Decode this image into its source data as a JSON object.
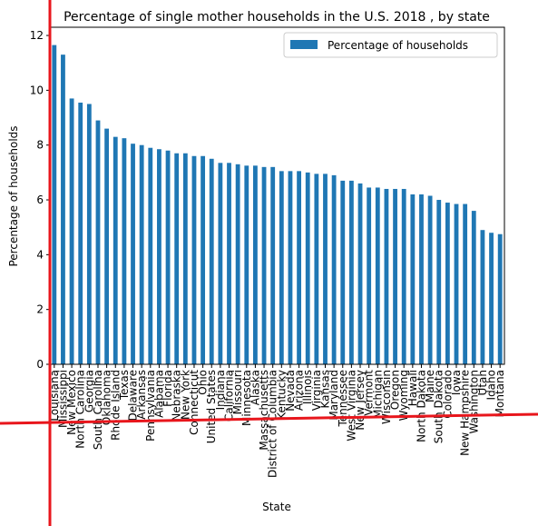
{
  "chart_data": {
    "type": "bar",
    "title": "Percentage of single mother households in the U.S. 2018 , by state",
    "x_label": "State",
    "y_label": "Percentage of households",
    "categories": [
      "Louisiana",
      "Mississippi",
      "New Mexico",
      "North Carolina",
      "Georgia",
      "South Carolina",
      "Oklahoma",
      "Rhode Island",
      "Texas",
      "Delaware",
      "Arkansas",
      "Pennsylvania",
      "Alabama",
      "Florida",
      "Nebraska",
      "New York",
      "Connecticut",
      "Ohio",
      "United States",
      "Indiana",
      "California",
      "Missouri",
      "Minnesota",
      "Alaska",
      "Massachusetts",
      "District of Columbia",
      "Kentucky",
      "Nevada",
      "Arizona",
      "Illinois",
      "Virginia",
      "Kansas",
      "Maryland",
      "Tennessee",
      "West Virginia",
      "New Jersey",
      "Vermont",
      "Michigan",
      "Wisconsin",
      "Oregon",
      "Wyoming",
      "Hawaii",
      "North Dakota",
      "Maine",
      "South Dakota",
      "Colorado",
      "Iowa",
      "New Hampshire",
      "Washington",
      "Utah",
      "Idaho",
      "Montana"
    ],
    "series": [
      {
        "name": "Percentage of households",
        "color": "#1f77b4",
        "values": [
          11.65,
          11.3,
          9.7,
          9.55,
          9.5,
          8.9,
          8.6,
          8.3,
          8.25,
          8.05,
          8.0,
          7.9,
          7.85,
          7.8,
          7.7,
          7.7,
          7.6,
          7.6,
          7.5,
          7.35,
          7.35,
          7.3,
          7.25,
          7.25,
          7.2,
          7.2,
          7.05,
          7.05,
          7.05,
          7.0,
          6.95,
          6.95,
          6.9,
          6.7,
          6.7,
          6.6,
          6.45,
          6.45,
          6.4,
          6.4,
          6.4,
          6.2,
          6.2,
          6.15,
          6.0,
          5.9,
          5.85,
          5.85,
          5.6,
          4.9,
          4.8,
          4.75
        ]
      }
    ],
    "ylim": [
      0,
      12.3
    ],
    "yticks": [
      0,
      2,
      4,
      6,
      8,
      10,
      12
    ],
    "legend": "upper right"
  }
}
